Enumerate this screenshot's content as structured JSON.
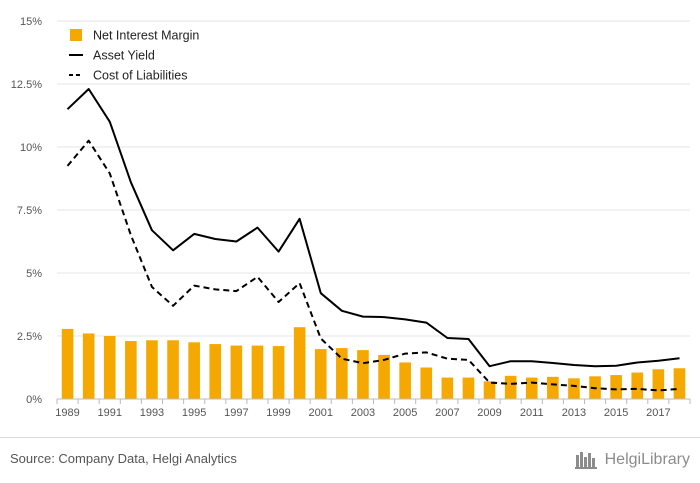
{
  "chart_data": {
    "type": "bar+line",
    "categories": [
      "1989",
      "1990",
      "1991",
      "1992",
      "1993",
      "1994",
      "1995",
      "1996",
      "1997",
      "1998",
      "1999",
      "2000",
      "2001",
      "2002",
      "2003",
      "2004",
      "2005",
      "2006",
      "2007",
      "2008",
      "2009",
      "2010",
      "2011",
      "2012",
      "2013",
      "2014",
      "2015",
      "2016",
      "2017",
      "2018"
    ],
    "x_tick_labels": [
      "1989",
      "1991",
      "1993",
      "1995",
      "1997",
      "1999",
      "2001",
      "2003",
      "2005",
      "2007",
      "2009",
      "2011",
      "2013",
      "2015",
      "2017"
    ],
    "y_tick_labels": [
      "0%",
      "2.5%",
      "5%",
      "7.5%",
      "10%",
      "12.5%",
      "15%"
    ],
    "y_ticks": [
      0,
      2.5,
      5,
      7.5,
      10,
      12.5,
      15
    ],
    "ylim": [
      0,
      15
    ],
    "grid": "horizontal",
    "legend_position": "top-left",
    "series": [
      {
        "name": "Net Interest Margin",
        "type": "bar",
        "color": "#f5a800",
        "values": [
          2.78,
          2.6,
          2.5,
          2.3,
          2.33,
          2.33,
          2.25,
          2.18,
          2.12,
          2.12,
          2.1,
          2.85,
          1.98,
          2.02,
          1.94,
          1.75,
          1.45,
          1.25,
          0.85,
          0.85,
          0.7,
          0.92,
          0.85,
          0.88,
          0.82,
          0.9,
          0.95,
          1.05,
          1.18,
          1.22
        ]
      },
      {
        "name": "Asset Yield",
        "type": "line",
        "style": "solid",
        "color": "#000000",
        "values": [
          11.5,
          12.3,
          11.0,
          8.6,
          6.7,
          5.9,
          6.55,
          6.35,
          6.25,
          6.8,
          5.85,
          7.15,
          4.2,
          3.5,
          3.27,
          3.25,
          3.16,
          3.03,
          2.42,
          2.38,
          1.3,
          1.5,
          1.5,
          1.43,
          1.35,
          1.3,
          1.32,
          1.45,
          1.52,
          1.62
        ]
      },
      {
        "name": "Cost of Liabilities",
        "type": "line",
        "style": "dashed",
        "color": "#000000",
        "values": [
          9.25,
          10.25,
          8.95,
          6.5,
          4.45,
          3.7,
          4.5,
          4.35,
          4.28,
          4.85,
          3.85,
          4.6,
          2.4,
          1.6,
          1.42,
          1.55,
          1.8,
          1.85,
          1.6,
          1.55,
          0.65,
          0.6,
          0.65,
          0.58,
          0.52,
          0.43,
          0.38,
          0.4,
          0.34,
          0.4
        ]
      }
    ]
  },
  "colors": {
    "bar": "#f5a800",
    "grid": "#e6e6e6",
    "axis": "#bbbbbb",
    "tick_text": "#555555",
    "line": "#000000",
    "footer_text": "#555555",
    "brand_text": "#8c8c8c"
  },
  "footer": {
    "source": "Source: Company Data, Helgi Analytics",
    "brand": "HelgiLibrary",
    "brand_icon": "helgi-library-logo-icon"
  }
}
